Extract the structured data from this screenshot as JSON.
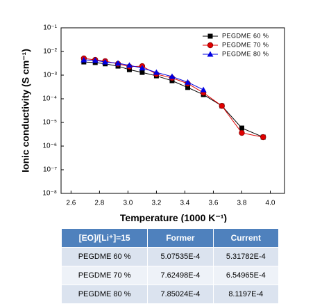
{
  "chart_data": {
    "type": "line",
    "x_label": "Temperature (1000 K⁻¹)",
    "y_label": "Ionic conductivity (S cm⁻¹)",
    "x": [
      2.69,
      2.77,
      2.84,
      2.93,
      3.01,
      3.1,
      3.2,
      3.31,
      3.42,
      3.53,
      3.66,
      3.8,
      3.95
    ],
    "series": [
      {
        "name": "PEGDME 60 %",
        "color": "#000000",
        "marker": "square",
        "values": [
          0.0036,
          0.0034,
          0.003,
          0.0024,
          0.0017,
          0.0013,
          0.00093,
          0.00058,
          0.0003,
          0.00015,
          5e-05,
          5.8e-06,
          2.4e-06
        ]
      },
      {
        "name": "PEGDME 70 %",
        "color": "#e00000",
        "marker": "circle",
        "values": [
          0.0051,
          0.0044,
          0.0039,
          0.003,
          0.0023,
          0.0024,
          0.0011,
          0.00076,
          0.00044,
          0.00018,
          5e-05,
          3.6e-06,
          2.4e-06
        ]
      },
      {
        "name": "PEGDME 80 %",
        "color": "#0000e0",
        "marker": "triangle",
        "values": [
          0.0044,
          0.0042,
          0.0036,
          0.0032,
          0.0026,
          0.002,
          0.0013,
          0.00087,
          0.0005,
          0.00024,
          null,
          null,
          null
        ]
      }
    ],
    "xlim": [
      2.53,
      4.1
    ],
    "xticks": [
      2.6,
      2.8,
      {
        "value": 3,
        "label": "3.0"
      },
      3.2,
      3.4,
      3.6,
      3.8,
      {
        "value": 4,
        "label": "4.0"
      }
    ],
    "ylim": [
      1e-08,
      0.1
    ],
    "log_y": true,
    "yticks": [
      {
        "value": 1e-08,
        "label": "10⁻⁸"
      },
      {
        "value": 1e-07,
        "label": "10⁻⁷"
      },
      {
        "value": 1e-06,
        "label": "10⁻⁶"
      },
      {
        "value": 1e-05,
        "label": "10⁻⁵"
      },
      {
        "value": 0.0001,
        "label": "10⁻⁴"
      },
      {
        "value": 0.001,
        "label": "10⁻³"
      },
      {
        "value": 0.01,
        "label": "10⁻²"
      },
      {
        "value": 0.1,
        "label": "10⁻¹"
      }
    ],
    "legend": "upper right"
  },
  "table": {
    "header": [
      "[EO]/[Li⁺]=15",
      "Former",
      "Current"
    ],
    "rows": [
      [
        "PEGDME 60 %",
        "5.07535E-4",
        "5.31782E-4"
      ],
      [
        "PEGDME 70 %",
        "7.62498E-4",
        "6.54965E-4"
      ],
      [
        "PEGDME 80 %",
        "7.85024E-4",
        "8.1197E-4"
      ]
    ]
  }
}
